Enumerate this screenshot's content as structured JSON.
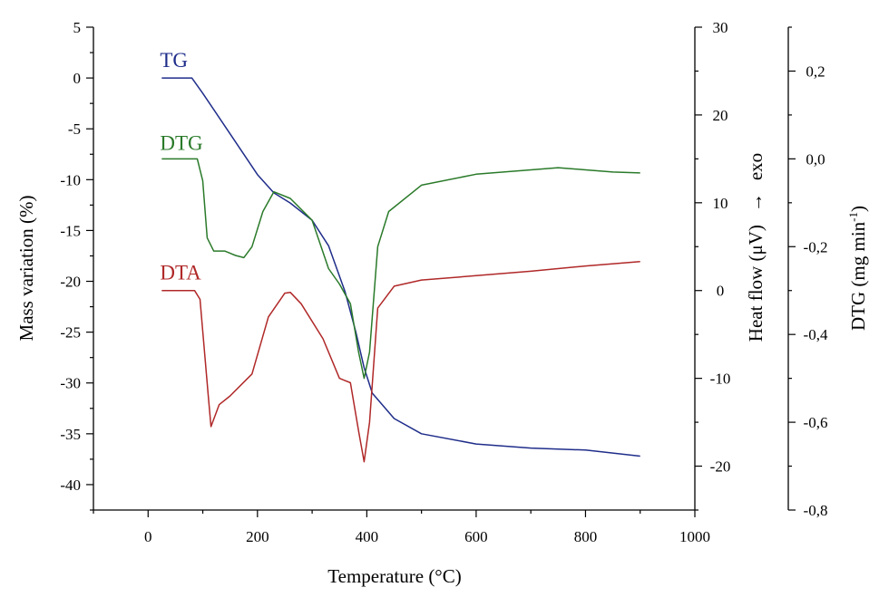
{
  "chart_data": {
    "type": "line",
    "xlabel": "Temperature (°C)",
    "xlim": [
      -100,
      1000
    ],
    "xticks": [
      0,
      200,
      400,
      600,
      800,
      1000
    ],
    "grid": false,
    "legend": "inline labels",
    "axes": {
      "left": {
        "label": "Mass variation (%)",
        "lim": [
          -42.5,
          5
        ],
        "ticks": [
          5,
          0,
          -5,
          -10,
          -15,
          -20,
          -25,
          -30,
          -35,
          -40
        ]
      },
      "right1": {
        "label_main": "Heat flow (μV)",
        "label_arrow": "→",
        "label_exo": "exo",
        "lim": [
          -25,
          30
        ],
        "ticks": [
          30,
          20,
          10,
          0,
          -10,
          -20
        ]
      },
      "right2": {
        "label_main": "DTG (mg min",
        "label_sup": "-1",
        "label_close": ")",
        "lim": [
          -0.8,
          0.3
        ],
        "ticks": [
          "0,2",
          "0,0",
          "-0,2",
          "-0,4",
          "-0,6",
          "-0,8"
        ],
        "tick_values": [
          0.2,
          0.0,
          -0.2,
          -0.4,
          -0.6,
          -0.8
        ]
      }
    },
    "series": [
      {
        "name": "TG",
        "axis": "left",
        "color": "#1f2d8a",
        "points": [
          [
            25,
            0
          ],
          [
            80,
            0
          ],
          [
            100,
            -1.5
          ],
          [
            150,
            -5.5
          ],
          [
            200,
            -9.5
          ],
          [
            230,
            -11.3
          ],
          [
            260,
            -12.3
          ],
          [
            300,
            -14
          ],
          [
            330,
            -16.5
          ],
          [
            360,
            -21
          ],
          [
            380,
            -25
          ],
          [
            395,
            -28.5
          ],
          [
            410,
            -31
          ],
          [
            450,
            -33.5
          ],
          [
            500,
            -35
          ],
          [
            600,
            -36
          ],
          [
            700,
            -36.4
          ],
          [
            800,
            -36.6
          ],
          [
            900,
            -37.2
          ]
        ]
      },
      {
        "name": "DTG",
        "axis": "right2",
        "color": "#2a7a2a",
        "points": [
          [
            25,
            0
          ],
          [
            90,
            0
          ],
          [
            100,
            -0.05
          ],
          [
            108,
            -0.18
          ],
          [
            120,
            -0.21
          ],
          [
            140,
            -0.21
          ],
          [
            160,
            -0.22
          ],
          [
            175,
            -0.225
          ],
          [
            190,
            -0.2
          ],
          [
            210,
            -0.12
          ],
          [
            230,
            -0.075
          ],
          [
            260,
            -0.09
          ],
          [
            300,
            -0.14
          ],
          [
            330,
            -0.25
          ],
          [
            350,
            -0.285
          ],
          [
            370,
            -0.33
          ],
          [
            385,
            -0.44
          ],
          [
            395,
            -0.5
          ],
          [
            405,
            -0.44
          ],
          [
            420,
            -0.2
          ],
          [
            440,
            -0.12
          ],
          [
            500,
            -0.06
          ],
          [
            600,
            -0.035
          ],
          [
            700,
            -0.025
          ],
          [
            750,
            -0.02
          ],
          [
            800,
            -0.025
          ],
          [
            850,
            -0.03
          ],
          [
            900,
            -0.032
          ]
        ]
      },
      {
        "name": "DTA",
        "axis": "right1",
        "color": "#b02828",
        "points": [
          [
            25,
            0
          ],
          [
            85,
            0
          ],
          [
            95,
            -1
          ],
          [
            110,
            -12
          ],
          [
            115,
            -15.5
          ],
          [
            130,
            -13
          ],
          [
            150,
            -12
          ],
          [
            190,
            -9.5
          ],
          [
            220,
            -3
          ],
          [
            250,
            -0.3
          ],
          [
            260,
            -0.2
          ],
          [
            280,
            -1.5
          ],
          [
            320,
            -5.5
          ],
          [
            350,
            -10
          ],
          [
            370,
            -10.5
          ],
          [
            385,
            -16
          ],
          [
            395,
            -19.5
          ],
          [
            405,
            -15
          ],
          [
            420,
            -2
          ],
          [
            450,
            0.5
          ],
          [
            500,
            1.2
          ],
          [
            600,
            1.7
          ],
          [
            700,
            2.2
          ],
          [
            800,
            2.8
          ],
          [
            900,
            3.3
          ]
        ]
      }
    ]
  }
}
